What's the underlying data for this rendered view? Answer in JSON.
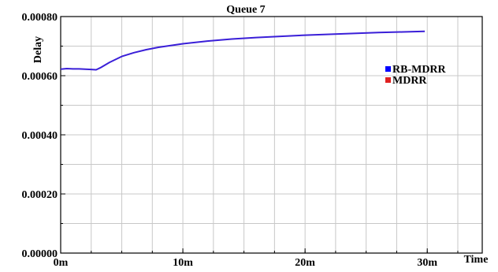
{
  "chart_data": {
    "type": "line",
    "title": "Queue 7",
    "xlabel": "Time",
    "ylabel": "Delay",
    "xlim": [
      0,
      30
    ],
    "ylim": [
      0,
      0.0008
    ],
    "x_ticks": [
      {
        "value": 0,
        "label": "0m"
      },
      {
        "value": 10,
        "label": "10m"
      },
      {
        "value": 20,
        "label": "20m"
      },
      {
        "value": 30,
        "label": "30m"
      }
    ],
    "x_minor_step": 2.5,
    "y_ticks": [
      {
        "value": 0,
        "label": "0.00000"
      },
      {
        "value": 0.0002,
        "label": "0.00020"
      },
      {
        "value": 0.0004,
        "label": "0.00040"
      },
      {
        "value": 0.0006,
        "label": "0.00060"
      },
      {
        "value": 0.0008,
        "label": "0.00080"
      }
    ],
    "y_minor_step": 0.0001,
    "grid": true,
    "legend_position": "right",
    "legend": [
      {
        "name": "RB-MDRR",
        "color": "#0000ff"
      },
      {
        "name": "MDRR",
        "color": "#e02020"
      }
    ],
    "series": [
      {
        "name": "RB-MDRR",
        "color": "#3a1fd8",
        "x": [
          0,
          0.5,
          1,
          1.5,
          2,
          2.5,
          2.9,
          3.3,
          4,
          5,
          6,
          7,
          8,
          9,
          10,
          12,
          14,
          16,
          18,
          20,
          22,
          24,
          26,
          28,
          29.8
        ],
        "y": [
          0.000622,
          0.000624,
          0.000623,
          0.000623,
          0.000622,
          0.000621,
          0.00062,
          0.000628,
          0.000645,
          0.000665,
          0.000678,
          0.000688,
          0.000696,
          0.000702,
          0.000708,
          0.000717,
          0.000724,
          0.000729,
          0.000733,
          0.000737,
          0.00074,
          0.000743,
          0.000746,
          0.000748,
          0.00075
        ]
      }
    ]
  }
}
